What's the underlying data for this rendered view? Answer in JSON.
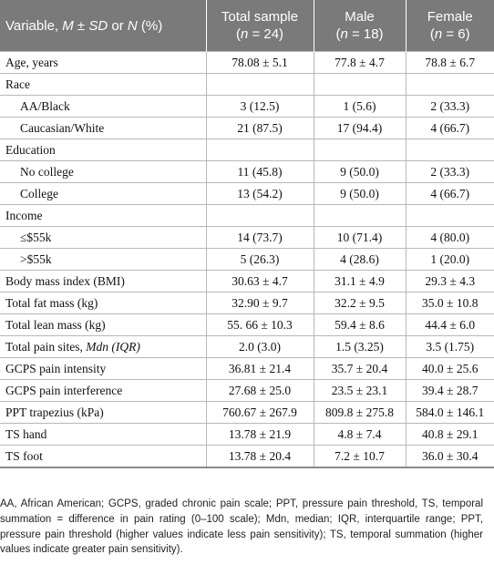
{
  "header": {
    "variable_prefix": "Variable, ",
    "variable_m": "M",
    "variable_pm": " ± ",
    "variable_sd": "SD",
    "variable_or": " or ",
    "variable_n": "N",
    "variable_pct": " (%)",
    "columns": [
      {
        "label": "Total sample",
        "n_prefix": "(",
        "n": "n",
        "n_suffix": " = 24)"
      },
      {
        "label": "Male",
        "n_prefix": "(",
        "n": "n",
        "n_suffix": " = 18)"
      },
      {
        "label": "Female",
        "n_prefix": "(",
        "n": "n",
        "n_suffix": " = 6)"
      }
    ]
  },
  "rows": [
    {
      "label": "Age, years",
      "values": [
        "78.08 ± 5.1",
        "77.8 ± 4.7",
        "78.8 ± 6.7"
      ]
    },
    {
      "label": "Race",
      "values": [
        "",
        "",
        ""
      ]
    },
    {
      "label": "AA/Black",
      "values": [
        "3 (12.5)",
        "1 (5.6)",
        "2 (33.3)"
      ]
    },
    {
      "label": "Caucasian/White",
      "values": [
        "21 (87.5)",
        "17 (94.4)",
        "4 (66.7)"
      ]
    },
    {
      "label": "Education",
      "values": [
        "",
        "",
        ""
      ]
    },
    {
      "label": "No college",
      "values": [
        "11 (45.8)",
        "9 (50.0)",
        "2 (33.3)"
      ]
    },
    {
      "label": "College",
      "values": [
        "13 (54.2)",
        "9 (50.0)",
        "4 (66.7)"
      ]
    },
    {
      "label": "Income",
      "values": [
        "",
        "",
        ""
      ]
    },
    {
      "label": "≤$55k",
      "values": [
        "14 (73.7)",
        "10 (71.4)",
        "4 (80.0)"
      ]
    },
    {
      "label": ">$55k",
      "values": [
        "5 (26.3)",
        "4 (28.6)",
        "1 (20.0)"
      ]
    },
    {
      "label": "Body mass index (BMI)",
      "values": [
        "30.63 ± 4.7",
        "31.1 ± 4.9",
        "29.3 ± 4.3"
      ]
    },
    {
      "label": "Total fat mass (kg)",
      "values": [
        "32.90 ± 9.7",
        "32.2 ± 9.5",
        "35.0 ± 10.8"
      ]
    },
    {
      "label": "Total lean mass (kg)",
      "values": [
        "55. 66 ± 10.3",
        "59.4 ± 8.6",
        "44.4 ± 6.0"
      ]
    },
    {
      "label": "Total pain sites, ",
      "label_italic": "Mdn (IQR)",
      "values": [
        "2.0 (3.0)",
        "1.5 (3.25)",
        "3.5 (1.75)"
      ]
    },
    {
      "label": "GCPS pain intensity",
      "values": [
        "36.81 ± 21.4",
        "35.7 ± 20.4",
        "40.0 ± 25.6"
      ]
    },
    {
      "label": "GCPS pain interference",
      "values": [
        "27.68 ± 25.0",
        "23.5 ± 23.1",
        "39.4 ± 28.7"
      ]
    },
    {
      "label": "PPT trapezius (kPa)",
      "values": [
        "760.67 ± 267.9",
        "809.8 ± 275.8",
        "584.0 ± 146.1"
      ]
    },
    {
      "label": "TS hand",
      "values": [
        "13.78 ± 21.9",
        "4.8 ± 7.4",
        "40.8 ± 29.1"
      ]
    },
    {
      "label": "TS foot",
      "values": [
        "13.78 ± 20.4",
        "7.2 ± 10.7",
        "36.0 ± 30.4"
      ]
    }
  ],
  "footnote": "AA, African American; GCPS, graded chronic pain scale; PPT, pressure pain threshold, TS, temporal summation = difference in pain rating (0–100 scale); Mdn, median; IQR, interquartile range; PPT, pressure pain threshold (higher values indicate less pain sensitivity); TS, temporal summation (higher values indicate greater pain sensitivity)."
}
